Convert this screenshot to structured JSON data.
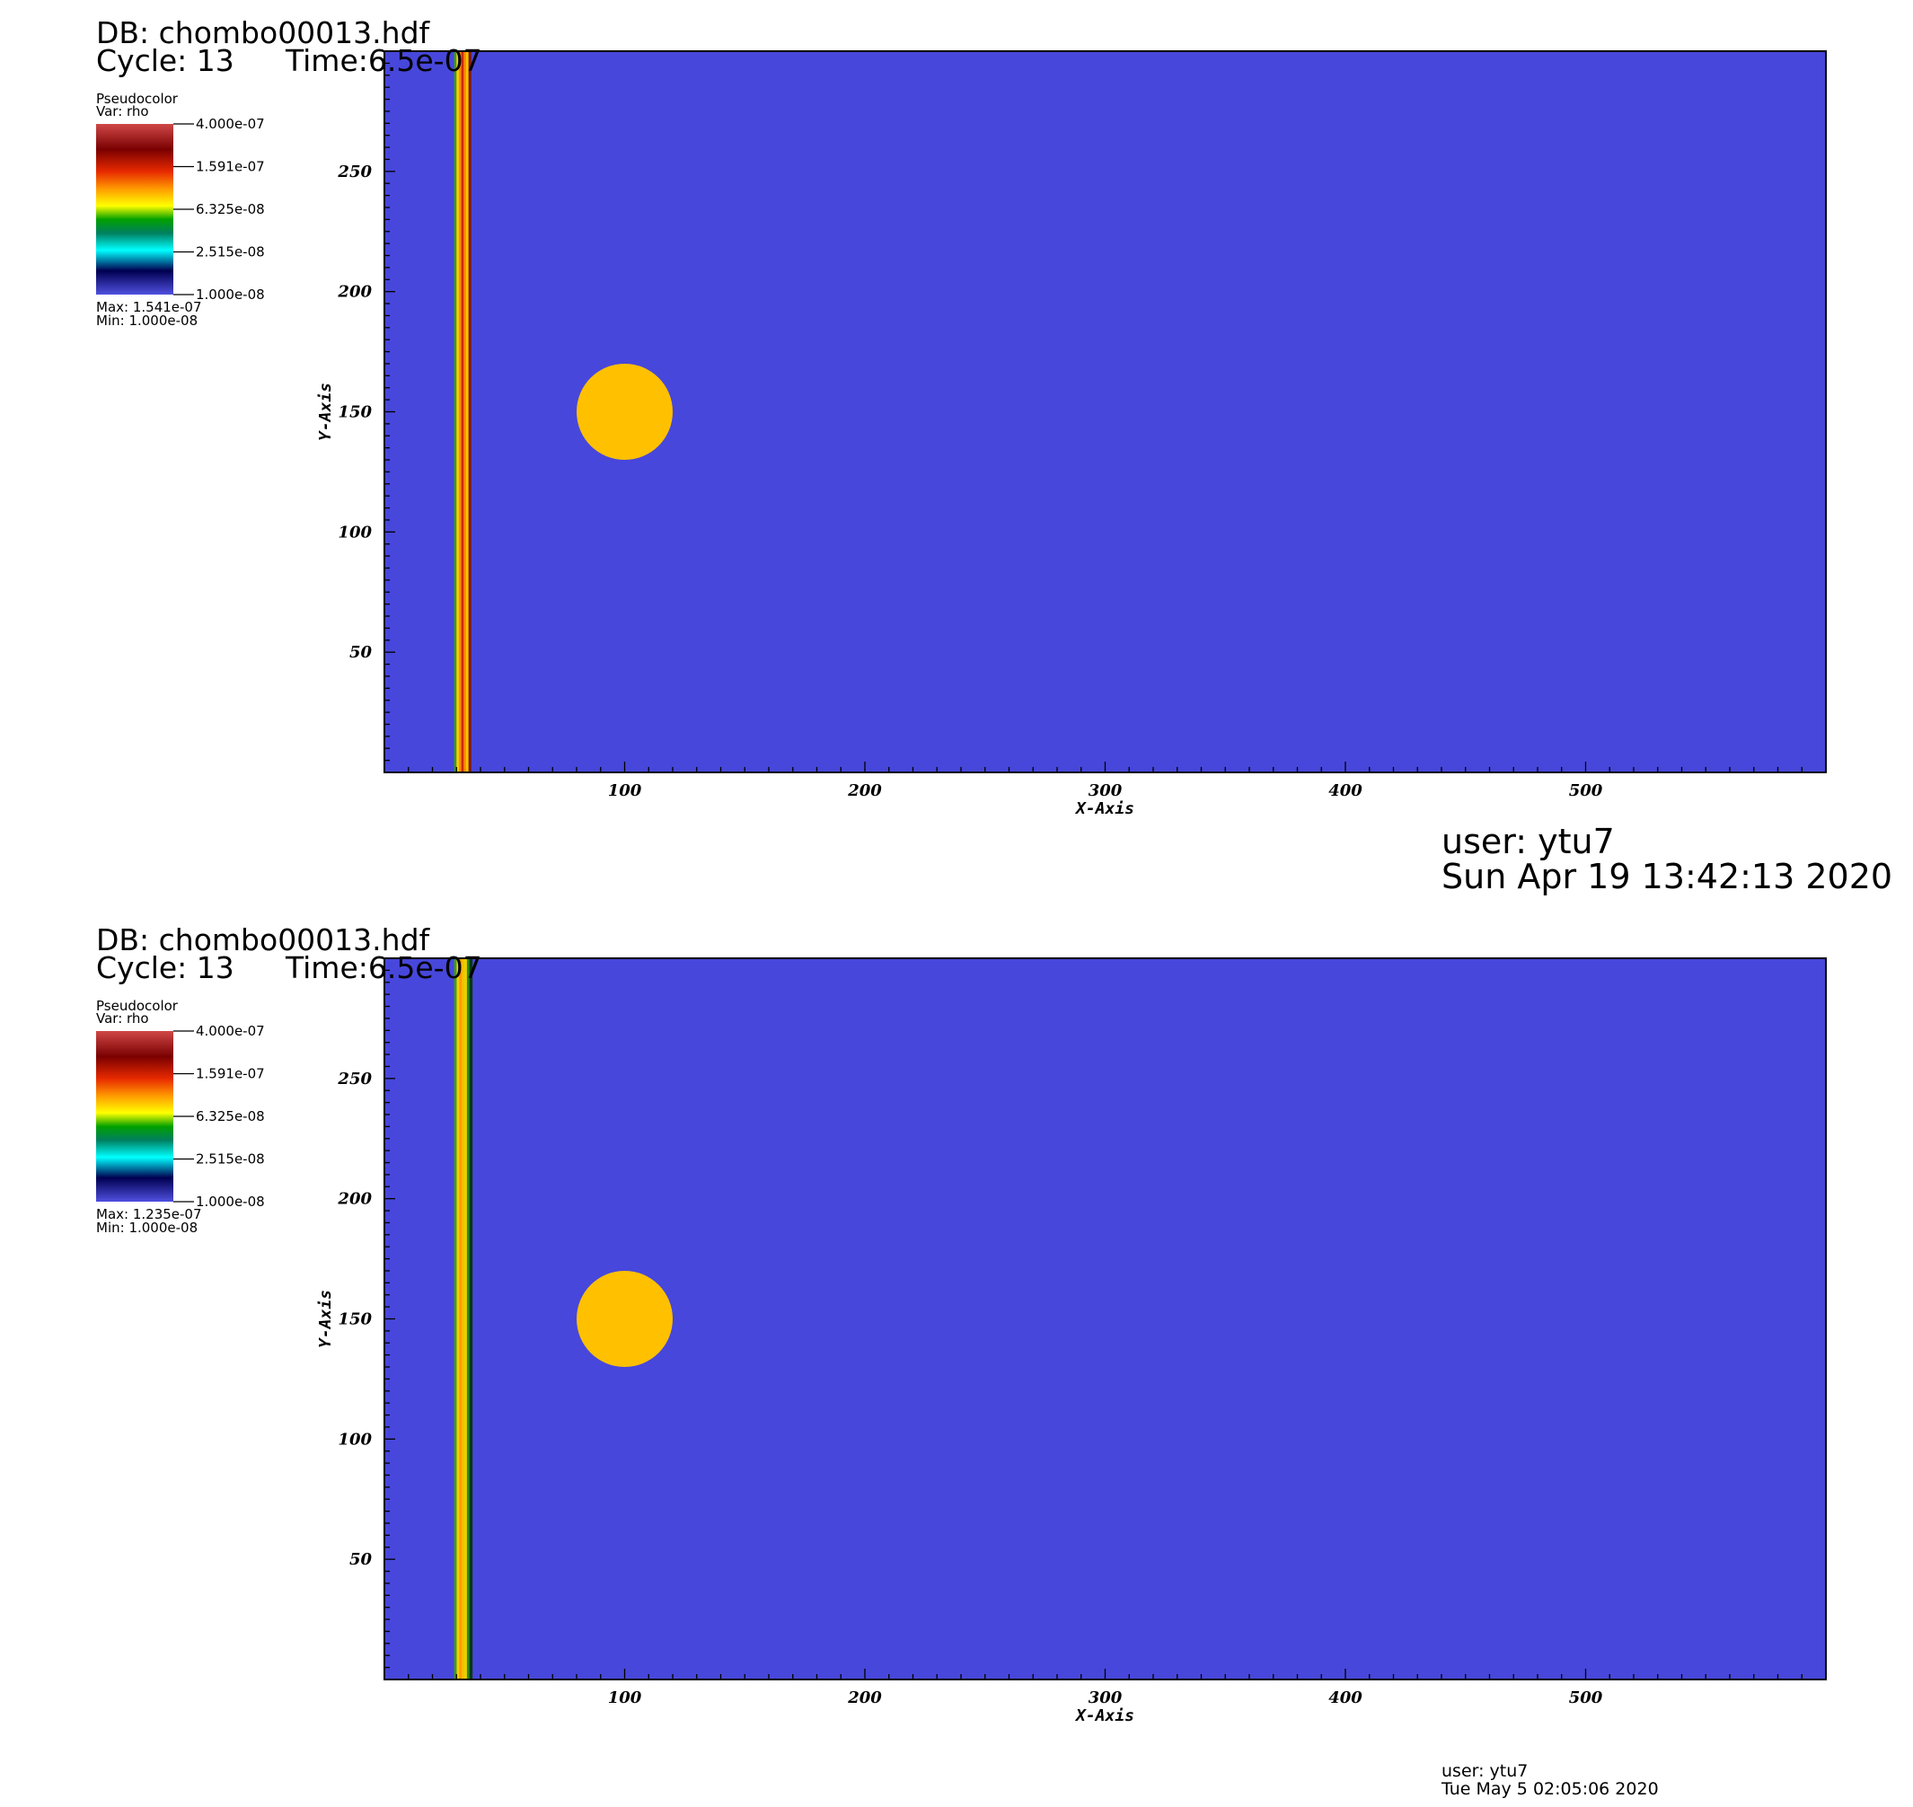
{
  "chart_data": [
    {
      "type": "heatmap",
      "db_label": "DB: chombo00013.hdf",
      "cycle_label": "Cycle: 13",
      "time_label": "Time:6.5e-07",
      "legend": {
        "plot_type": "Pseudocolor",
        "var": "Var: rho",
        "ticks": [
          "4.000e-07",
          "1.591e-07",
          "6.325e-08",
          "2.515e-08",
          "1.000e-08"
        ],
        "max": "Max:  1.541e-07",
        "min": "Min:  1.000e-08"
      },
      "xlabel": "X-Axis",
      "ylabel": "Y-Axis",
      "xlim": [
        0,
        600
      ],
      "ylim": [
        0,
        300
      ],
      "xticks": [
        100,
        200,
        300,
        400,
        500
      ],
      "yticks": [
        50,
        100,
        150,
        200,
        250
      ],
      "background_color": "#4747db",
      "shock_band": {
        "x_range": [
          29,
          36
        ],
        "stripe_colors": [
          "#3a9a2a",
          "#f5d000",
          "#ff8a00",
          "#cc2a10",
          "#ff8a00",
          "#f5c400",
          "#7f1a10"
        ]
      },
      "bubble": {
        "cx": 100,
        "cy": 150,
        "r": 20,
        "color": "#ffc000"
      },
      "user": "user: ytu7",
      "date": "Sun Apr 19 13:42:13 2020"
    },
    {
      "type": "heatmap",
      "db_label": "DB: chombo00013.hdf",
      "cycle_label": "Cycle: 13",
      "time_label": "Time:6.5e-07",
      "legend": {
        "plot_type": "Pseudocolor",
        "var": "Var: rho",
        "ticks": [
          "4.000e-07",
          "1.591e-07",
          "6.325e-08",
          "2.515e-08",
          "1.000e-08"
        ],
        "max": "Max:  1.235e-07",
        "min": "Min:  1.000e-08"
      },
      "xlabel": "X-Axis",
      "ylabel": "Y-Axis",
      "xlim": [
        0,
        600
      ],
      "ylim": [
        0,
        300
      ],
      "xticks": [
        100,
        200,
        300,
        400,
        500
      ],
      "yticks": [
        50,
        100,
        150,
        200,
        250
      ],
      "background_color": "#4747db",
      "shock_band": {
        "x_range": [
          29,
          36.5
        ],
        "stripe_colors": [
          "#3a9a2a",
          "#f5d000",
          "#ff9a00",
          "#f5c000",
          "#e8d000",
          "#2a8a20",
          "#0a3a0a"
        ]
      },
      "bubble": {
        "cx": 100,
        "cy": 150,
        "r": 20,
        "color": "#ffc000"
      },
      "user": "user: ytu7",
      "date": "Tue May  5 02:05:06 2020"
    }
  ]
}
